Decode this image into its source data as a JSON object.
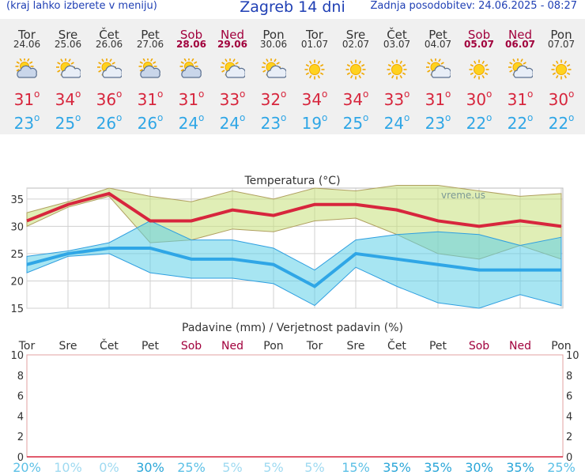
{
  "header": {
    "menu_hint": "(kraj lahko izberete v meniju)",
    "title": "Zagreb 14 dni",
    "updated": "Zadnja posodobitev: 24.06.2025 - 08:27"
  },
  "colors": {
    "max": "#d7263d",
    "min": "#2fa6e6",
    "title": "#1f3fb4",
    "weekend": "#a1003c"
  },
  "days": [
    {
      "name": "Tor",
      "date": "24.06",
      "weekend": false,
      "icon": "partly-cloudy-icon",
      "max": "31",
      "min": "23"
    },
    {
      "name": "Sre",
      "date": "25.06",
      "weekend": false,
      "icon": "sun-cloud-icon",
      "max": "34",
      "min": "25"
    },
    {
      "name": "Čet",
      "date": "26.06",
      "weekend": false,
      "icon": "sun-cloud-icon",
      "max": "36",
      "min": "26"
    },
    {
      "name": "Pet",
      "date": "27.06",
      "weekend": false,
      "icon": "partly-cloudy-icon",
      "max": "31",
      "min": "26"
    },
    {
      "name": "Sob",
      "date": "28.06",
      "weekend": true,
      "icon": "partly-cloudy-icon",
      "max": "31",
      "min": "24"
    },
    {
      "name": "Ned",
      "date": "29.06",
      "weekend": true,
      "icon": "sun-cloud-icon",
      "max": "33",
      "min": "24"
    },
    {
      "name": "Pon",
      "date": "30.06",
      "weekend": false,
      "icon": "sun-cloud-icon",
      "max": "32",
      "min": "23"
    },
    {
      "name": "Tor",
      "date": "01.07",
      "weekend": false,
      "icon": "sun-icon",
      "max": "34",
      "min": "19"
    },
    {
      "name": "Sre",
      "date": "02.07",
      "weekend": false,
      "icon": "sun-icon",
      "max": "34",
      "min": "25"
    },
    {
      "name": "Čet",
      "date": "03.07",
      "weekend": false,
      "icon": "sun-icon",
      "max": "33",
      "min": "24"
    },
    {
      "name": "Pet",
      "date": "04.07",
      "weekend": false,
      "icon": "sun-cloud-icon",
      "max": "31",
      "min": "23"
    },
    {
      "name": "Sob",
      "date": "05.07",
      "weekend": true,
      "icon": "sun-icon",
      "max": "30",
      "min": "22"
    },
    {
      "name": "Ned",
      "date": "06.07",
      "weekend": true,
      "icon": "sun-cloud-icon",
      "max": "31",
      "min": "22"
    },
    {
      "name": "Pon",
      "date": "07.07",
      "weekend": false,
      "icon": "sun-icon",
      "max": "30",
      "min": "22"
    }
  ],
  "chart_data": [
    {
      "type": "line",
      "title": "Temperatura (°C)",
      "watermark": "vreme.us",
      "ylim": [
        15,
        37
      ],
      "yticks": [
        15,
        20,
        25,
        30,
        35
      ],
      "x": [
        "24.06",
        "25.06",
        "26.06",
        "27.06",
        "28.06",
        "29.06",
        "30.06",
        "01.07",
        "02.07",
        "03.07",
        "04.07",
        "05.07",
        "06.07",
        "07.07"
      ],
      "series": [
        {
          "key": "max",
          "values": [
            31,
            34,
            36,
            31,
            31,
            33,
            32,
            34,
            34,
            33,
            31,
            30,
            31,
            30
          ]
        },
        {
          "key": "max_upper",
          "values": [
            32.5,
            34.5,
            37,
            35.5,
            34.5,
            36.5,
            35,
            37,
            36.5,
            37.5,
            37.5,
            36.5,
            35.5,
            36
          ]
        },
        {
          "key": "max_lower",
          "values": [
            30,
            33.5,
            35.5,
            27,
            27.5,
            29.5,
            29,
            31,
            31.5,
            28.5,
            25,
            24,
            26.5,
            24
          ]
        },
        {
          "key": "min",
          "values": [
            23,
            25,
            26,
            26,
            24,
            24,
            23,
            19,
            25,
            24,
            23,
            22,
            22,
            22
          ]
        },
        {
          "key": "min_upper",
          "values": [
            24.5,
            25.5,
            27,
            31,
            27.5,
            27.5,
            26,
            22,
            27.5,
            28.5,
            29,
            28.5,
            26.5,
            28
          ]
        },
        {
          "key": "min_lower",
          "values": [
            21.5,
            24.5,
            25,
            21.5,
            20.5,
            20.5,
            19.5,
            15.5,
            22.5,
            19,
            16,
            15,
            17.5,
            15.5
          ]
        }
      ]
    },
    {
      "type": "bar",
      "title": "Padavine (mm) / Verjetnost padavin (%)",
      "ylim": [
        0,
        10
      ],
      "yticks": [
        0,
        2,
        4,
        6,
        8,
        10
      ],
      "categories": [
        "Tor",
        "Sre",
        "Čet",
        "Pet",
        "Sob",
        "Ned",
        "Pon",
        "Tor",
        "Sre",
        "Čet",
        "Pet",
        "Sob",
        "Ned",
        "Pon"
      ],
      "weekend": [
        false,
        false,
        false,
        false,
        true,
        true,
        false,
        false,
        false,
        false,
        false,
        true,
        true,
        false
      ],
      "values": [
        0,
        0,
        0,
        0,
        0,
        0,
        0,
        0,
        0,
        0,
        0,
        0,
        0,
        0
      ],
      "probability": [
        "20%",
        "10%",
        "0%",
        "30%",
        "25%",
        "5%",
        "5%",
        "5%",
        "15%",
        "35%",
        "35%",
        "30%",
        "35%",
        "25%"
      ]
    }
  ]
}
